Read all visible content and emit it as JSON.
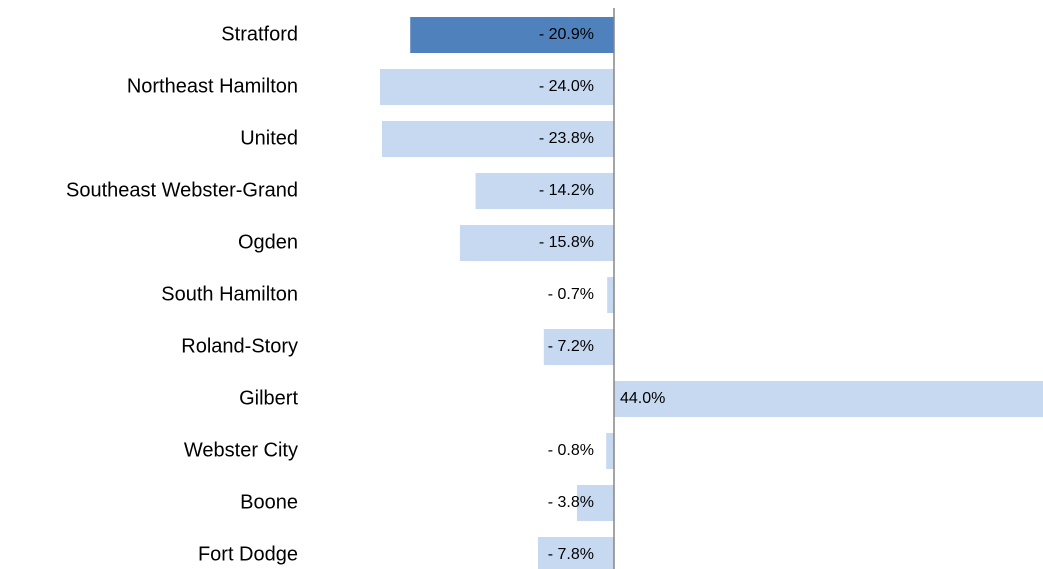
{
  "chart_data": {
    "type": "bar",
    "orientation": "horizontal",
    "categories": [
      "Stratford",
      "Northeast Hamilton",
      "United",
      "Southeast Webster-Grand",
      "Ogden",
      "South Hamilton",
      "Roland-Story",
      "Gilbert",
      "Webster City",
      "Boone",
      "Fort Dodge"
    ],
    "values": [
      -20.9,
      -24.0,
      -23.8,
      -14.2,
      -15.8,
      -0.7,
      -7.2,
      44.0,
      -0.8,
      -3.8,
      -7.8
    ],
    "value_labels": [
      "- 20.9%",
      "- 24.0%",
      "- 23.8%",
      "- 14.2%",
      "- 15.8%",
      "- 0.7%",
      "- 7.2%",
      "44.0%",
      "- 0.8%",
      "- 3.8%",
      "- 7.8%"
    ],
    "colors": [
      "#4f81bd",
      "#c6d9f1",
      "#c6d9f1",
      "#c6d9f1",
      "#c6d9f1",
      "#c6d9f1",
      "#c6d9f1",
      "#c6d9f1",
      "#c6d9f1",
      "#c6d9f1",
      "#c6d9f1"
    ]
  }
}
